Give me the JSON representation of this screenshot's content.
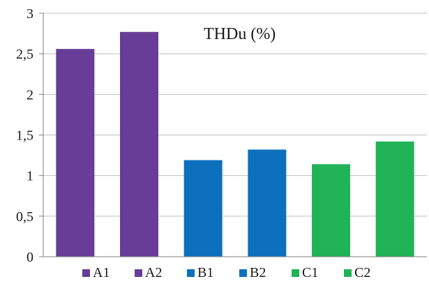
{
  "chart_data": {
    "type": "bar",
    "title": "THDu (%)",
    "xlabel": "",
    "ylabel": "",
    "ylim": [
      0,
      3
    ],
    "yticks": [
      0,
      0.5,
      1,
      1.5,
      2,
      2.5,
      3
    ],
    "ytick_labels": [
      "0",
      "0,5",
      "1",
      "1,5",
      "2",
      "2,5",
      "3"
    ],
    "grid": true,
    "legend_position": "bottom",
    "categories": [
      "A1",
      "A2",
      "B1",
      "B2",
      "C1",
      "C2"
    ],
    "values": [
      2.56,
      2.77,
      1.19,
      1.32,
      1.14,
      1.42
    ],
    "colors": [
      "#673d97",
      "#673d97",
      "#0d70bd",
      "#0d70bd",
      "#22b257",
      "#22b257"
    ],
    "gridline_color": "#bfbfbf",
    "axis_color": "#7f7f7f"
  }
}
